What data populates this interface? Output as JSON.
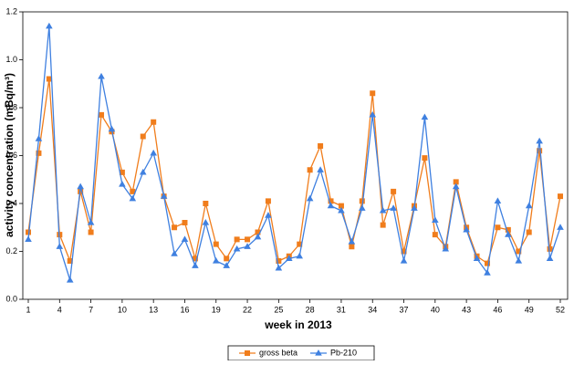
{
  "chart_data": {
    "type": "line",
    "xlabel": "week in 2013",
    "ylabel": "activity concentration (mBq/m³)",
    "x": [
      1,
      2,
      3,
      4,
      5,
      6,
      7,
      8,
      9,
      10,
      11,
      12,
      13,
      14,
      15,
      16,
      17,
      18,
      19,
      20,
      21,
      22,
      23,
      24,
      25,
      26,
      27,
      28,
      29,
      30,
      31,
      32,
      33,
      34,
      35,
      36,
      37,
      38,
      39,
      40,
      41,
      42,
      43,
      44,
      45,
      46,
      47,
      48,
      49,
      50,
      51,
      52
    ],
    "series": [
      {
        "name": "gross beta",
        "color": "#f07d1c",
        "marker": "square",
        "values": [
          0.28,
          0.61,
          0.92,
          0.27,
          0.16,
          0.45,
          0.28,
          0.77,
          0.7,
          0.53,
          0.45,
          0.68,
          0.74,
          0.43,
          0.3,
          0.32,
          0.17,
          0.4,
          0.23,
          0.17,
          0.25,
          0.25,
          0.28,
          0.41,
          0.16,
          0.18,
          0.23,
          0.54,
          0.64,
          0.41,
          0.39,
          0.22,
          0.41,
          0.86,
          0.31,
          0.45,
          0.2,
          0.39,
          0.59,
          0.27,
          0.22,
          0.49,
          0.3,
          0.18,
          0.15,
          0.3,
          0.29,
          0.2,
          0.28,
          0.62,
          0.21,
          0.43
        ]
      },
      {
        "name": "Pb-210",
        "color": "#3f80e0",
        "marker": "triangle",
        "values": [
          0.25,
          0.67,
          1.14,
          0.22,
          0.08,
          0.47,
          0.32,
          0.93,
          0.71,
          0.48,
          0.42,
          0.53,
          0.61,
          0.43,
          0.19,
          0.25,
          0.14,
          0.32,
          0.16,
          0.14,
          0.21,
          0.22,
          0.26,
          0.35,
          0.13,
          0.17,
          0.18,
          0.42,
          0.54,
          0.39,
          0.37,
          0.24,
          0.38,
          0.77,
          0.37,
          0.38,
          0.16,
          0.38,
          0.76,
          0.33,
          0.21,
          0.47,
          0.29,
          0.17,
          0.11,
          0.41,
          0.27,
          0.16,
          0.39,
          0.66,
          0.17,
          0.3
        ]
      }
    ],
    "xlim": [
      1,
      52
    ],
    "xticks": [
      1,
      4,
      7,
      10,
      13,
      16,
      19,
      22,
      25,
      28,
      31,
      34,
      37,
      40,
      43,
      46,
      49,
      52
    ],
    "ylim": [
      0,
      1.2
    ],
    "yticks": [
      {
        "value": 0,
        "label": "0.0"
      },
      {
        "value": 0.2,
        "label": "0.2"
      },
      {
        "value": 0.4,
        "label": "0.4"
      },
      {
        "value": 0.6,
        "label": "0.6"
      },
      {
        "value": 0.8,
        "label": "0.8"
      },
      {
        "value": 1.0,
        "label": "1.0"
      },
      {
        "value": 1.2,
        "label": "1.2"
      }
    ],
    "legend": "bottom"
  }
}
